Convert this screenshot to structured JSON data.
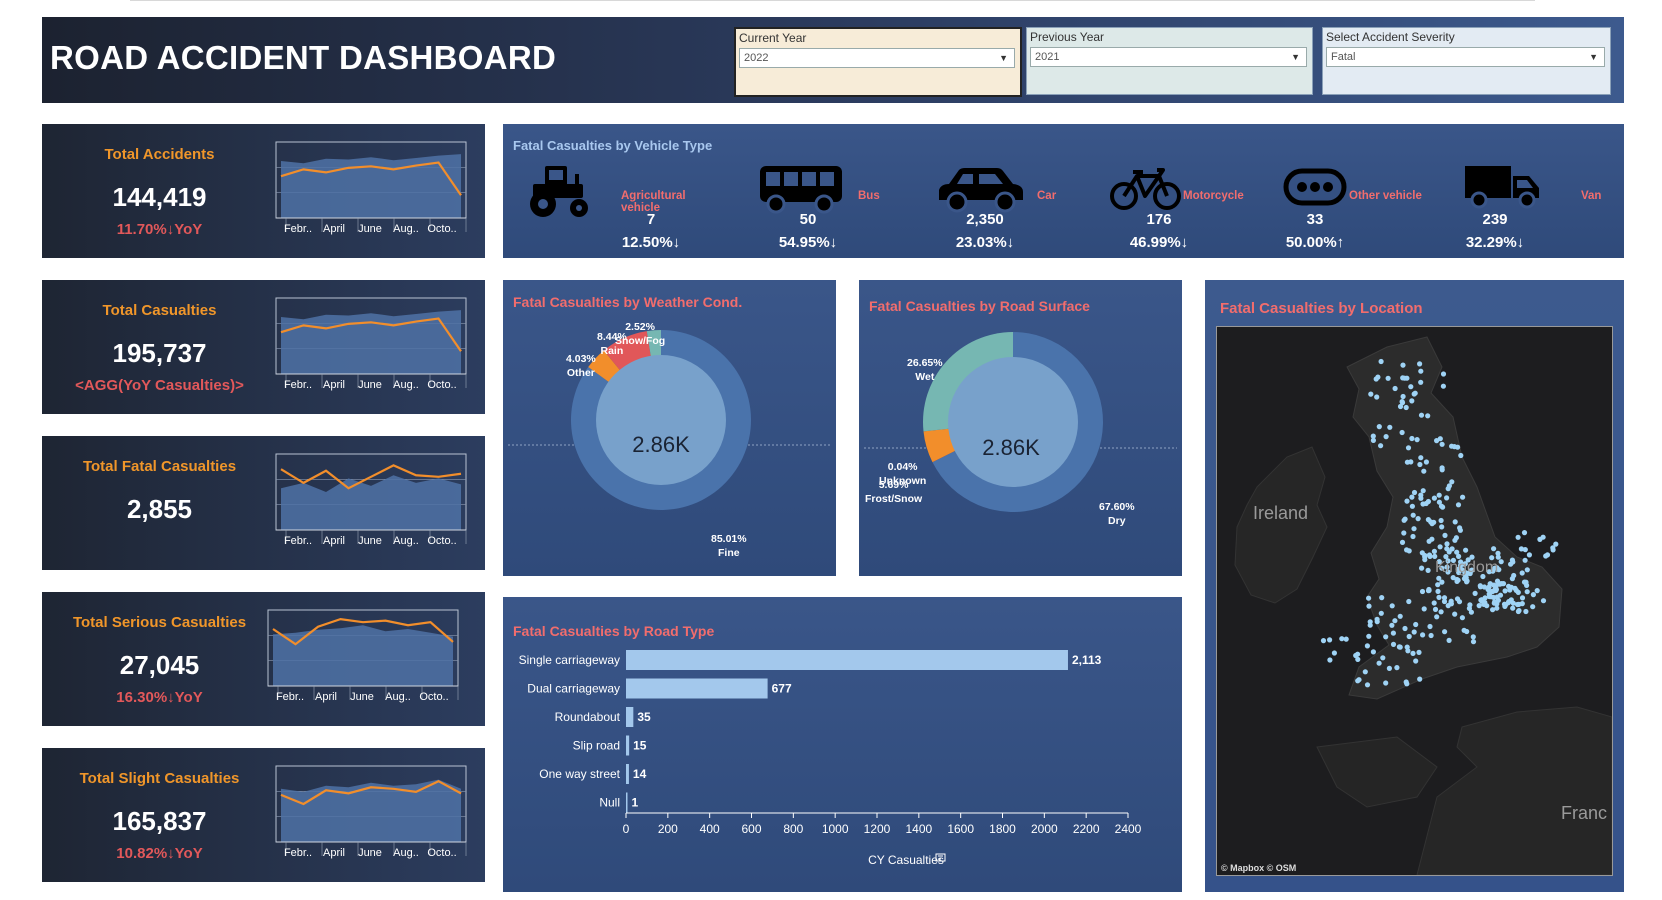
{
  "header": {
    "title": "ROAD ACCIDENT DASHBOARD",
    "filters": [
      {
        "label": "Current Year",
        "value": "2022"
      },
      {
        "label": "Previous Year",
        "value": "2021"
      },
      {
        "label": "Select Accident Severity",
        "value": "Fatal"
      }
    ]
  },
  "kpis": [
    {
      "title": "Total Accidents",
      "value": "144,419",
      "yoy": "11.70%↓YoY",
      "ticks": [
        "Febr..",
        "April",
        "June",
        "Aug..",
        "Octo.."
      ],
      "cy": [
        0.55,
        0.64,
        0.6,
        0.66,
        0.68,
        0.64,
        0.69,
        0.73,
        0.3
      ],
      "py": [
        0.75,
        0.72,
        0.78,
        0.77,
        0.8,
        0.76,
        0.79,
        0.82,
        0.84
      ]
    },
    {
      "title": "Total Casualties",
      "value": "195,737",
      "yoy": "<AGG(YoY Casualties)>",
      "ticks": [
        "Febr..",
        "April",
        "June",
        "Aug..",
        "Octo.."
      ],
      "cy": [
        0.55,
        0.64,
        0.6,
        0.66,
        0.68,
        0.64,
        0.69,
        0.73,
        0.3
      ],
      "py": [
        0.75,
        0.72,
        0.78,
        0.77,
        0.8,
        0.76,
        0.79,
        0.82,
        0.84
      ]
    },
    {
      "title": "Total Fatal Casualties",
      "value": "2,855",
      "yoy": "",
      "ticks": [
        "Febr..",
        "April",
        "June",
        "Aug..",
        "Octo.."
      ],
      "cy": [
        0.8,
        0.62,
        0.78,
        0.55,
        0.7,
        0.85,
        0.72,
        0.7,
        0.74
      ],
      "py": [
        0.55,
        0.62,
        0.5,
        0.68,
        0.58,
        0.72,
        0.62,
        0.68,
        0.6
      ]
    },
    {
      "title": "Total Serious Casualties",
      "value": "27,045",
      "yoy": "16.30%↓YoY",
      "ticks": [
        "Febr..",
        "April",
        "June",
        "Aug..",
        "Octo.."
      ],
      "cy": [
        0.75,
        0.55,
        0.78,
        0.88,
        0.84,
        0.86,
        0.8,
        0.84,
        0.58
      ],
      "py": [
        0.68,
        0.7,
        0.74,
        0.76,
        0.8,
        0.72,
        0.75,
        0.7,
        0.65
      ]
    },
    {
      "title": "Total Slight Casualties",
      "value": "165,837",
      "yoy": "10.82%↓YoY",
      "ticks": [
        "Febr..",
        "April",
        "June",
        "Aug..",
        "Octo.."
      ],
      "cy": [
        0.62,
        0.5,
        0.68,
        0.64,
        0.72,
        0.7,
        0.66,
        0.8,
        0.64
      ],
      "py": [
        0.7,
        0.66,
        0.74,
        0.72,
        0.78,
        0.74,
        0.76,
        0.82,
        0.7
      ]
    }
  ],
  "vehicle_panel": {
    "title": "Fatal Casualties by Vehicle Type",
    "items": [
      {
        "name": "Agricultural vehicle",
        "value": "7",
        "yoy": "12.50%↓",
        "icon": "tractor-icon"
      },
      {
        "name": "Bus",
        "value": "50",
        "yoy": "54.95%↓",
        "icon": "bus-icon"
      },
      {
        "name": "Car",
        "value": "2,350",
        "yoy": "23.03%↓",
        "icon": "car-icon"
      },
      {
        "name": "Motorcycle",
        "value": "176",
        "yoy": "46.99%↓",
        "icon": "bicycle-icon"
      },
      {
        "name": "Other vehicle",
        "value": "33",
        "yoy": "50.00%↑",
        "icon": "other-vehicle-icon"
      },
      {
        "name": "Van",
        "value": "239",
        "yoy": "32.29%↓",
        "icon": "truck-icon"
      }
    ]
  },
  "weather_panel": {
    "title": "Fatal Casualties by Weather Cond.",
    "center": "2.86K",
    "labels": {
      "snow": "2.52%\nSnow/Fog",
      "rain": "8.44%\nRain",
      "other": "4.03%\nOther",
      "fine": "85.01%\nFine"
    }
  },
  "surface_panel": {
    "title": "Fatal Casualties by Road Surface",
    "center": "2.86K",
    "labels": {
      "wet": "26.65%\nWet",
      "unknown": "0.04%\nUnknown",
      "frost": "5.69%\nFrost/Snow",
      "dry": "67.60%\nDry"
    }
  },
  "map_panel": {
    "title": "Fatal Casualties by Location",
    "places": [
      "Ireland",
      "Kingdom",
      "Franc"
    ],
    "attribution": "© Mapbox  © OSM"
  },
  "chart_data": [
    {
      "type": "pie",
      "title": "Fatal Casualties by Weather Cond.",
      "categories": [
        "Fine",
        "Other",
        "Rain",
        "Snow/Fog"
      ],
      "values": [
        85.01,
        4.03,
        8.44,
        2.52
      ],
      "colors": [
        "#4a73ab",
        "#f28e2b",
        "#e15759",
        "#76b7b2"
      ]
    },
    {
      "type": "pie",
      "title": "Fatal Casualties by Road Surface",
      "categories": [
        "Dry",
        "Unknown",
        "Frost/Snow",
        "Wet"
      ],
      "values": [
        67.6,
        0.04,
        5.69,
        26.65
      ],
      "colors": [
        "#4a73ab",
        "#e15759",
        "#f28e2b",
        "#76b7b2"
      ]
    },
    {
      "type": "bar",
      "title": "Fatal Casualties by Road Type",
      "categories": [
        "Single carriageway",
        "Dual carriageway",
        "Roundabout",
        "Slip road",
        "One way street",
        "Null"
      ],
      "values": [
        2113,
        677,
        35,
        15,
        14,
        1
      ],
      "value_labels": [
        "2,113",
        "677",
        "35",
        "15",
        "14",
        "1"
      ],
      "xlabel": "CY Casualties",
      "xticks": [
        0,
        200,
        400,
        600,
        800,
        1000,
        1200,
        1400,
        1600,
        1800,
        2000,
        2200,
        2400
      ],
      "xlim": [
        0,
        2400
      ],
      "color": "#a3c8ec"
    }
  ]
}
